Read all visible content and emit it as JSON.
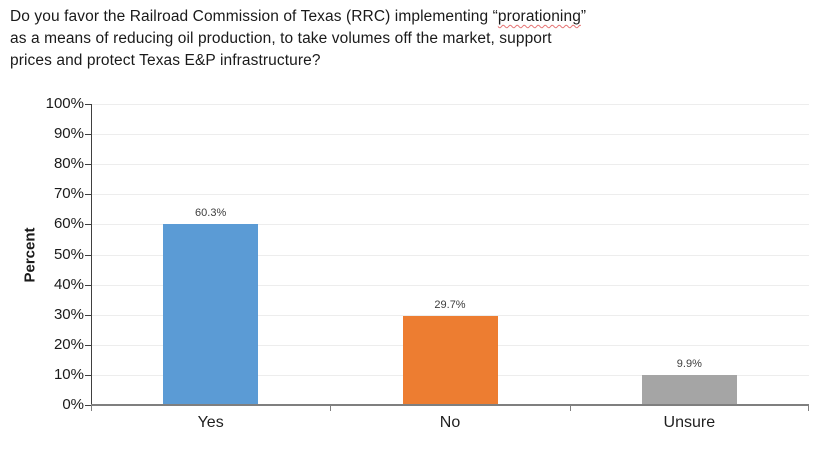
{
  "title": {
    "line1_before": "Do you favor the Railroad Commission of Texas (RRC) implementing “",
    "misspelled_word": "prorationing",
    "line1_after": "”",
    "line2": "as a means of reducing oil production, to take volumes off the market, support",
    "line3": "prices and protect Texas E&P infrastructure?"
  },
  "chart_data": {
    "type": "bar",
    "title": "Do you favor the Railroad Commission of Texas (RRC) implementing “prorationing” as a means of reducing oil production, to take volumes off the market, support prices and protect Texas E&P infrastructure?",
    "categories": [
      "Yes",
      "No",
      "Unsure"
    ],
    "values": [
      60.3,
      29.7,
      9.9
    ],
    "value_labels": [
      "60.3%",
      "29.7%",
      "9.9%"
    ],
    "bar_colors": [
      "#5B9BD5",
      "#ED7D31",
      "#A5A5A5"
    ],
    "xlabel": "",
    "ylabel": "Percent",
    "ylim": [
      0,
      100
    ],
    "y_tick_interval": 10,
    "y_tick_labels": [
      "0%",
      "10%",
      "20%",
      "30%",
      "40%",
      "50%",
      "60%",
      "70%",
      "80%",
      "90%",
      "100%"
    ],
    "grid": "horizontal-light",
    "legend": "none",
    "gridline_color": "#ededed",
    "axis_color": "#7f7f7f"
  }
}
